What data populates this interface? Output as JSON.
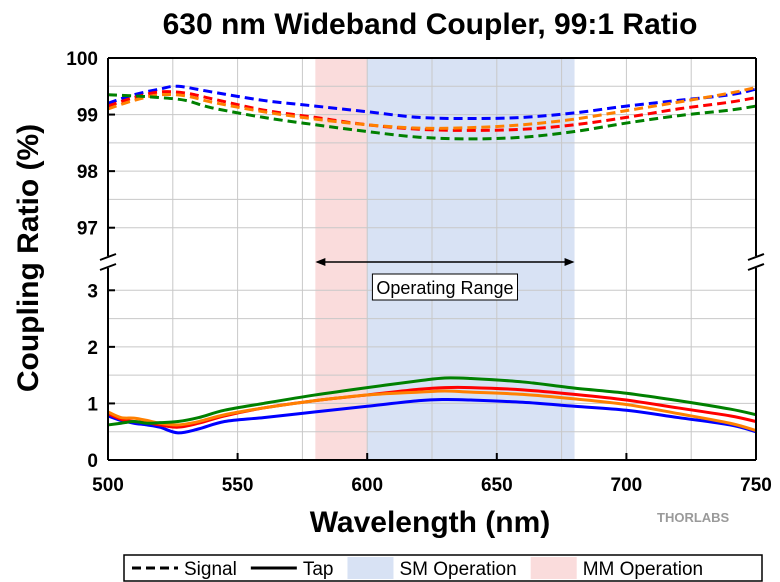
{
  "chart_data": {
    "type": "line",
    "title": "630 nm Wideband Coupler, 99:1 Ratio",
    "xlabel": "Wavelength (nm)",
    "ylabel": "Coupling Ratio (%)",
    "xlim": [
      500,
      750
    ],
    "x_ticks": [
      "500",
      "550",
      "600",
      "650",
      "700",
      "750"
    ],
    "ylim_upper": [
      96.5,
      100
    ],
    "ylim_lower": [
      0,
      3.5
    ],
    "y_ticks_upper": [
      "97",
      "98",
      "99",
      "100"
    ],
    "y_ticks_lower": [
      "0",
      "1",
      "2",
      "3"
    ],
    "axis_break": true,
    "grid": true,
    "bands": [
      {
        "name": "MM Operation",
        "x": [
          580,
          600
        ],
        "color": "#fadcdc"
      },
      {
        "name": "SM Operation",
        "x": [
          600,
          680
        ],
        "color": "#d8e2f4"
      },
      {
        "name": "MM Operation",
        "x": [
          680,
          680
        ],
        "color": "#fadcdc"
      }
    ],
    "annotation": {
      "text": "Operating Range",
      "x_range": [
        580,
        680
      ],
      "y": 3.5
    },
    "series": [
      {
        "color": "#0000ff",
        "style": "dashed",
        "x": [
          500,
          510,
          520,
          527,
          540,
          560,
          580,
          600,
          620,
          640,
          660,
          680,
          700,
          720,
          740,
          750
        ],
        "values": [
          99.2,
          99.35,
          99.45,
          99.5,
          99.4,
          99.25,
          99.15,
          99.05,
          98.95,
          98.93,
          98.95,
          99.03,
          99.15,
          99.25,
          99.35,
          99.45
        ]
      },
      {
        "color": "#ff0000",
        "style": "dashed",
        "x": [
          500,
          510,
          520,
          530,
          540,
          560,
          580,
          600,
          620,
          640,
          660,
          680,
          700,
          720,
          740,
          750
        ],
        "values": [
          99.15,
          99.3,
          99.4,
          99.38,
          99.28,
          99.08,
          98.95,
          98.82,
          98.74,
          98.72,
          98.74,
          98.82,
          98.95,
          99.1,
          99.22,
          99.3
        ]
      },
      {
        "color": "#ff8000",
        "style": "dashed",
        "x": [
          500,
          510,
          520,
          530,
          540,
          560,
          580,
          600,
          620,
          640,
          660,
          680,
          700,
          720,
          740,
          750
        ],
        "values": [
          99.1,
          99.25,
          99.35,
          99.33,
          99.22,
          99.05,
          98.92,
          98.82,
          98.76,
          98.77,
          98.82,
          98.92,
          99.07,
          99.22,
          99.38,
          99.48
        ]
      },
      {
        "color": "#008000",
        "style": "dashed",
        "x": [
          500,
          510,
          520,
          530,
          540,
          560,
          580,
          600,
          620,
          640,
          660,
          680,
          700,
          720,
          740,
          750
        ],
        "values": [
          99.35,
          99.33,
          99.3,
          99.25,
          99.12,
          98.95,
          98.82,
          98.7,
          98.6,
          98.57,
          98.6,
          98.7,
          98.85,
          98.98,
          99.08,
          99.15
        ]
      },
      {
        "color": "#0000ff",
        "style": "solid",
        "x": [
          500,
          505,
          510,
          515,
          520,
          527,
          535,
          545,
          560,
          580,
          600,
          620,
          630,
          640,
          660,
          680,
          700,
          720,
          740,
          750
        ],
        "values": [
          0.78,
          0.7,
          0.65,
          0.62,
          0.58,
          0.48,
          0.55,
          0.68,
          0.75,
          0.85,
          0.95,
          1.05,
          1.07,
          1.06,
          1.02,
          0.95,
          0.88,
          0.75,
          0.62,
          0.5
        ]
      },
      {
        "color": "#ff0000",
        "style": "solid",
        "x": [
          500,
          505,
          510,
          515,
          520,
          527,
          535,
          545,
          560,
          580,
          600,
          620,
          630,
          640,
          660,
          680,
          700,
          720,
          740,
          750
        ],
        "values": [
          0.82,
          0.72,
          0.68,
          0.66,
          0.62,
          0.58,
          0.65,
          0.78,
          0.92,
          1.05,
          1.15,
          1.25,
          1.28,
          1.28,
          1.24,
          1.16,
          1.06,
          0.92,
          0.78,
          0.68
        ]
      },
      {
        "color": "#ff8000",
        "style": "solid",
        "x": [
          500,
          505,
          510,
          515,
          520,
          527,
          535,
          545,
          560,
          580,
          600,
          620,
          630,
          640,
          660,
          680,
          700,
          720,
          740,
          750
        ],
        "values": [
          0.85,
          0.75,
          0.74,
          0.7,
          0.65,
          0.62,
          0.68,
          0.8,
          0.92,
          1.05,
          1.15,
          1.2,
          1.22,
          1.2,
          1.16,
          1.08,
          0.98,
          0.82,
          0.65,
          0.52
        ]
      },
      {
        "color": "#008000",
        "style": "solid",
        "x": [
          500,
          505,
          510,
          515,
          520,
          527,
          535,
          545,
          560,
          580,
          600,
          620,
          630,
          640,
          660,
          680,
          700,
          720,
          740,
          750
        ],
        "values": [
          0.62,
          0.65,
          0.68,
          0.65,
          0.66,
          0.68,
          0.75,
          0.88,
          1.0,
          1.15,
          1.28,
          1.4,
          1.45,
          1.44,
          1.38,
          1.27,
          1.18,
          1.05,
          0.9,
          0.8
        ]
      }
    ],
    "legend": {
      "placement": "bottom",
      "items": [
        {
          "label": "Signal",
          "kind": "line-dashed",
          "color": "#000000"
        },
        {
          "label": "Tap",
          "kind": "line-solid",
          "color": "#000000"
        },
        {
          "label": "SM Operation",
          "kind": "patch",
          "color": "#d8e2f4"
        },
        {
          "label": "MM Operation",
          "kind": "patch",
          "color": "#fadcdc"
        }
      ]
    },
    "watermark": "THORLABS"
  }
}
